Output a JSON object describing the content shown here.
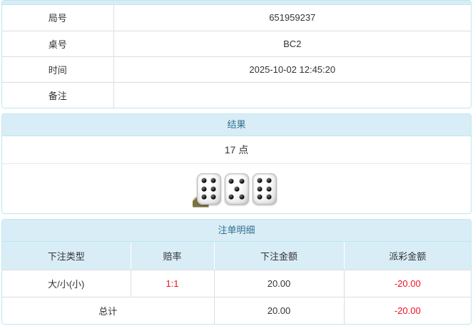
{
  "colors": {
    "panel_border": "#bce8f1",
    "heading_bg": "#d9edf7",
    "heading_text": "#31708f",
    "row_border": "#dddddd",
    "text": "#333333",
    "negative": "#ee1122",
    "badge_bg": "#7b7342"
  },
  "game_info": {
    "rows": [
      {
        "label": "局号",
        "value": "651959237"
      },
      {
        "label": "桌号",
        "value": "BC2"
      },
      {
        "label": "时间",
        "value": "2025-10-02 12:45:20"
      },
      {
        "label": "备注",
        "value": ""
      }
    ]
  },
  "result": {
    "title": "结果",
    "points": "17 点",
    "dice": [
      6,
      5,
      6
    ],
    "info_badge_label": "i"
  },
  "bets": {
    "title": "注单明细",
    "columns": [
      "下注类型",
      "赔率",
      "下注金额",
      "派彩金额"
    ],
    "rows": [
      {
        "type": "大/小(小)",
        "odds": "1:1",
        "amount": "20.00",
        "payout": "-20.00"
      }
    ],
    "total_label": "总计",
    "total_amount": "20.00",
    "total_payout": "-20.00"
  }
}
